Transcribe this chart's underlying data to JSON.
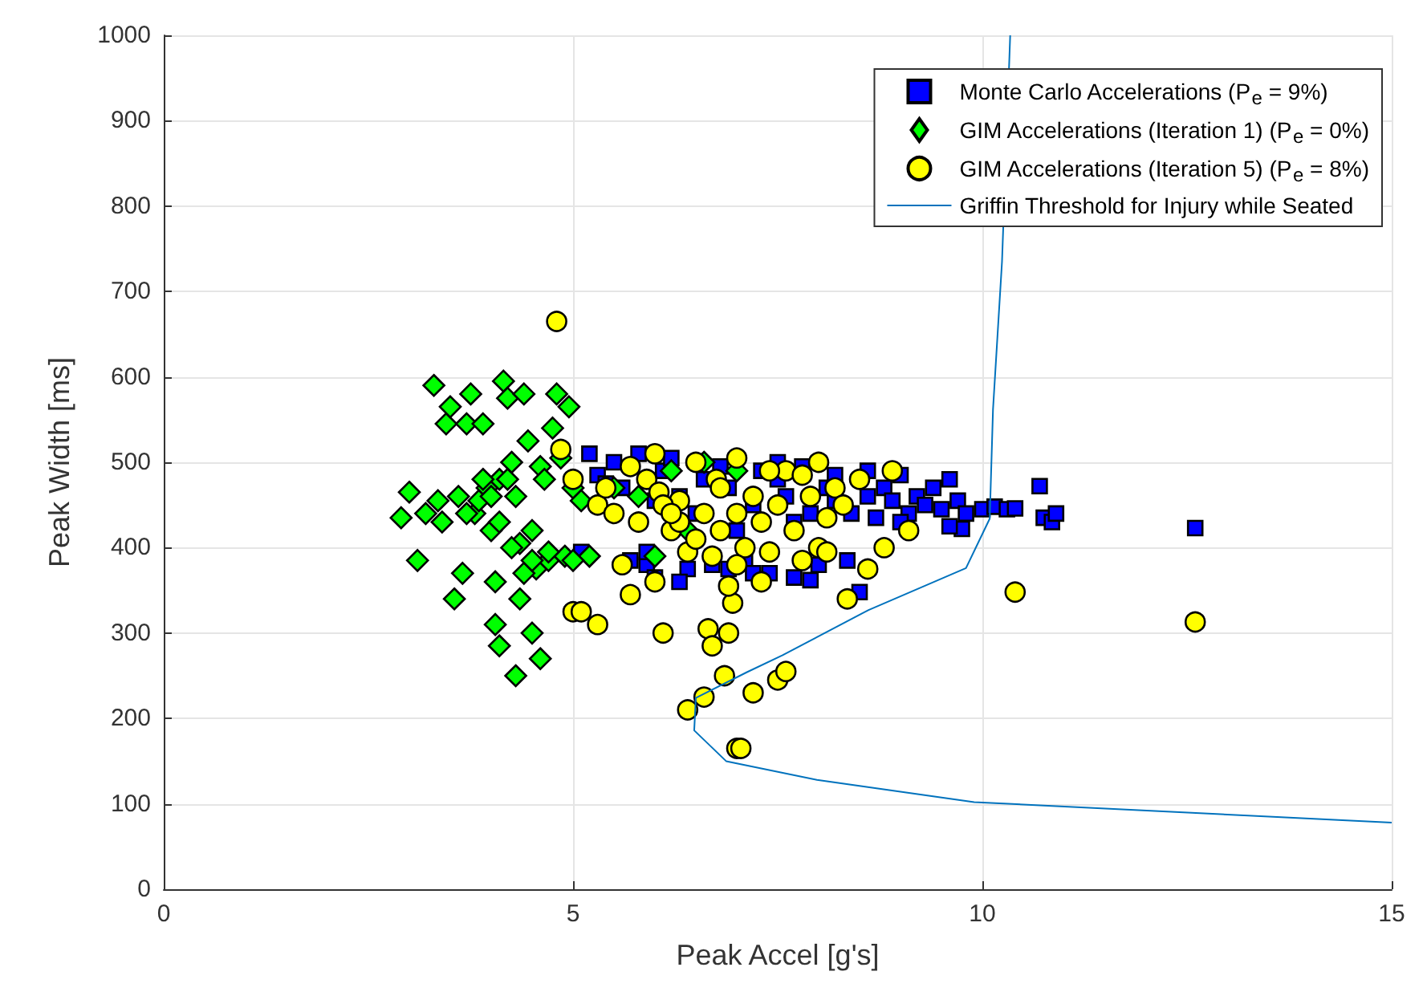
{
  "chart_data": {
    "type": "scatter",
    "xlabel": "Peak Accel [g's]",
    "ylabel": "Peak Width [ms]",
    "xlim": [
      0,
      15
    ],
    "xticks": [
      0,
      5,
      10,
      15
    ],
    "ylim": [
      0,
      1000
    ],
    "yticks": [
      0,
      100,
      200,
      300,
      400,
      500,
      600,
      700,
      800,
      900,
      1000
    ],
    "grid": true,
    "legend": "top right",
    "series": [
      {
        "name": "Monte Carlo Accelerations (P$_{e}$ = 9%)",
        "marker": "square",
        "color": "#0000ff",
        "x": [
          5.1,
          5.2,
          5.3,
          5.5,
          5.6,
          5.7,
          5.8,
          5.9,
          6.0,
          6.1,
          6.2,
          6.3,
          6.4,
          6.6,
          6.7,
          6.8,
          6.9,
          7.1,
          7.2,
          7.3,
          7.4,
          7.5,
          7.6,
          7.7,
          7.8,
          7.9,
          8.0,
          8.1,
          8.2,
          8.4,
          8.6,
          8.7,
          8.8,
          8.9,
          9.0,
          9.1,
          9.2,
          9.3,
          9.4,
          9.5,
          9.6,
          9.7,
          9.8,
          9.75,
          10.0,
          10.15,
          10.3,
          10.4,
          10.7,
          10.75,
          10.85,
          10.9,
          12.6,
          8.5,
          8.35,
          7.9,
          7.2,
          6.3,
          5.9,
          6.9,
          6.5,
          7.0,
          7.7,
          8.2,
          5.4,
          6.0,
          7.5,
          8.6,
          9.0,
          9.6
        ],
        "values": [
          395,
          510,
          485,
          500,
          470,
          385,
          510,
          380,
          365,
          490,
          505,
          460,
          375,
          480,
          380,
          495,
          470,
          385,
          450,
          490,
          370,
          480,
          460,
          365,
          495,
          440,
          380,
          470,
          485,
          440,
          460,
          435,
          470,
          455,
          485,
          440,
          460,
          450,
          470,
          445,
          480,
          455,
          440,
          422,
          445,
          448,
          445,
          446,
          472,
          435,
          430,
          440,
          423,
          348,
          385,
          362,
          370,
          360,
          395,
          375,
          440,
          420,
          430,
          455,
          475,
          455,
          500,
          490,
          430,
          425
        ]
      },
      {
        "name": "GIM Accelerations (Iteration 1) (P$_{e}$ = 0%)",
        "marker": "diamond",
        "color": "#00ff00",
        "x": [
          2.9,
          3.0,
          3.1,
          3.2,
          3.3,
          3.35,
          3.4,
          3.45,
          3.5,
          3.55,
          3.6,
          3.65,
          3.7,
          3.75,
          3.8,
          3.85,
          3.9,
          3.95,
          4.0,
          4.05,
          4.1,
          4.05,
          4.1,
          4.15,
          4.2,
          4.25,
          4.3,
          4.3,
          4.35,
          4.4,
          4.45,
          4.5,
          4.5,
          4.55,
          4.6,
          4.6,
          4.65,
          4.7,
          4.75,
          4.8,
          4.85,
          4.9,
          4.95,
          5.0,
          5.1,
          3.9,
          4.2,
          4.0,
          4.1,
          4.4,
          4.7,
          5.2,
          5.5,
          5.8,
          6.2,
          6.6,
          7.0,
          6.0,
          6.4,
          5.0,
          4.25,
          3.7,
          4.5,
          4.35
        ],
        "values": [
          435,
          465,
          385,
          440,
          590,
          455,
          430,
          545,
          565,
          340,
          460,
          370,
          545,
          580,
          440,
          455,
          545,
          470,
          420,
          310,
          285,
          360,
          480,
          595,
          575,
          500,
          460,
          250,
          405,
          580,
          525,
          300,
          420,
          375,
          270,
          495,
          480,
          385,
          540,
          580,
          505,
          390,
          565,
          470,
          455,
          480,
          480,
          460,
          430,
          370,
          395,
          390,
          470,
          460,
          490,
          500,
          490,
          390,
          420,
          385,
          400,
          440,
          385,
          340
        ]
      },
      {
        "name": "GIM Accelerations (Iteration 5) (P$_{e}$ = 8%)",
        "marker": "circle",
        "color": "#ffff00",
        "x": [
          4.8,
          4.85,
          5.0,
          5.0,
          5.1,
          5.3,
          5.3,
          5.5,
          5.6,
          5.7,
          5.8,
          5.9,
          6.0,
          6.05,
          6.1,
          6.2,
          6.3,
          6.4,
          6.4,
          6.5,
          6.6,
          6.6,
          6.65,
          6.7,
          6.75,
          6.8,
          6.85,
          6.9,
          6.95,
          7.0,
          7.05,
          7.0,
          7.0,
          7.1,
          7.2,
          7.2,
          7.3,
          7.4,
          7.5,
          7.6,
          7.6,
          7.7,
          7.8,
          7.9,
          8.0,
          8.0,
          8.1,
          8.2,
          8.3,
          8.35,
          8.5,
          8.6,
          8.8,
          8.9,
          9.1,
          10.4,
          12.6,
          6.3,
          6.5,
          6.1,
          6.8,
          7.3,
          7.5,
          7.0,
          6.7,
          5.4,
          5.7,
          6.2,
          7.8,
          8.1,
          6.9,
          6.0,
          7.4
        ],
        "values": [
          665,
          515,
          480,
          325,
          325,
          450,
          310,
          440,
          380,
          345,
          430,
          480,
          510,
          465,
          300,
          420,
          455,
          395,
          210,
          500,
          440,
          225,
          305,
          285,
          480,
          420,
          250,
          300,
          335,
          165,
          165,
          505,
          440,
          400,
          230,
          460,
          430,
          395,
          245,
          490,
          255,
          420,
          385,
          460,
          400,
          500,
          435,
          470,
          450,
          340,
          480,
          375,
          400,
          490,
          420,
          348,
          313,
          430,
          410,
          450,
          470,
          360,
          450,
          380,
          390,
          470,
          495,
          440,
          485,
          395,
          355,
          360,
          490
        ]
      },
      {
        "name": "Griffin Threshold for Injury while Seated",
        "type": "line",
        "marker": "none",
        "color": "#0072bd",
        "x": [
          15,
          9.9,
          7.98,
          6.87,
          6.48,
          6.5,
          7.12,
          7.56,
          8.61,
          9.8,
          10.09,
          10.13,
          10.24,
          10.34
        ],
        "values": [
          78,
          102,
          128,
          150,
          186,
          224,
          254,
          274,
          327,
          376,
          434,
          562,
          735,
          1000
        ]
      }
    ]
  }
}
